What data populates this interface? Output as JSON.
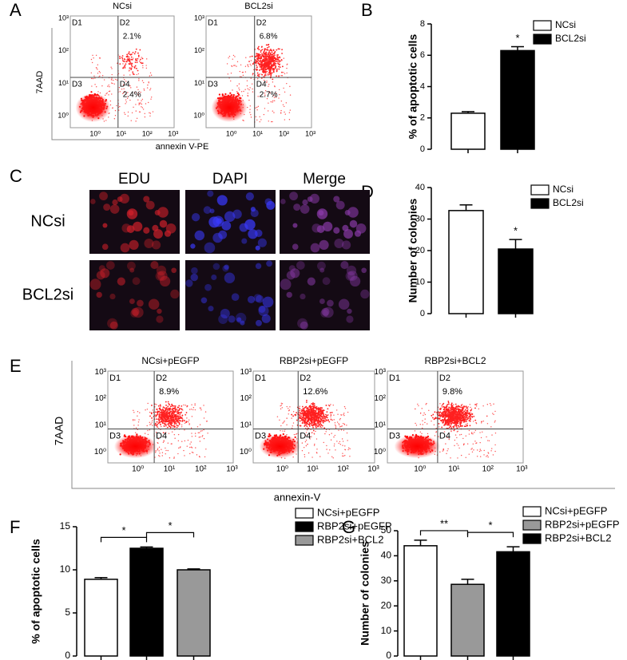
{
  "panel_labels": [
    "A",
    "B",
    "C",
    "D",
    "E",
    "F",
    "G"
  ],
  "flow_A": {
    "ylabel": "7AAD",
    "xlabel": "annexin V-PE",
    "ticks": [
      "10⁰",
      "10¹",
      "10²",
      "10³"
    ],
    "quadrants": [
      "D1",
      "D2",
      "D3",
      "D4"
    ],
    "plots": [
      {
        "title": "NCsi",
        "d2": "2.1%",
        "d4": "2.4%"
      },
      {
        "title": "BCL2si",
        "d2": "6.8%",
        "d4": "2.7%"
      }
    ]
  },
  "images_C": {
    "columns": [
      "EDU",
      "DAPI",
      "Merge"
    ],
    "rows": [
      "NCsi",
      "BCL2si"
    ]
  },
  "flow_E": {
    "ylabel": "7AAD",
    "xlabel": "annexin-V",
    "ticks": [
      "10⁰",
      "10¹",
      "10²",
      "10³"
    ],
    "quadrants": [
      "D1",
      "D2",
      "D3",
      "D4"
    ],
    "plots": [
      {
        "title": "NCsi+pEGFP",
        "d2": "8.9%"
      },
      {
        "title": "RBP2si+pEGFP",
        "d2": "12.6%"
      },
      {
        "title": "RBP2si+BCL2",
        "d2": "9.8%"
      }
    ]
  },
  "chart_data": [
    {
      "type": "bar",
      "ylabel": "% of apoptotic cells",
      "ylim": [
        0,
        8
      ],
      "yticks": [
        0,
        2,
        4,
        6,
        8
      ],
      "series": [
        {
          "name": "NCsi",
          "color": "#ffffff",
          "values": [
            2.3
          ],
          "errors": [
            0.1
          ]
        },
        {
          "name": "BCL2si",
          "color": "#000000",
          "values": [
            6.3
          ],
          "errors": [
            0.25
          ]
        }
      ],
      "brackets": [
        {
          "over": 1,
          "label": "*"
        }
      ]
    },
    {
      "type": "bar",
      "ylabel": "Number of colonies",
      "ylim": [
        0,
        40
      ],
      "yticks": [
        0,
        10,
        20,
        30,
        40
      ],
      "series": [
        {
          "name": "NCsi",
          "color": "#ffffff",
          "values": [
            32.7
          ],
          "errors": [
            1.8
          ]
        },
        {
          "name": "BCL2si",
          "color": "#000000",
          "values": [
            20.5
          ],
          "errors": [
            3.0
          ]
        }
      ],
      "brackets": [
        {
          "over": 1,
          "label": "*"
        }
      ]
    },
    {
      "type": "bar",
      "ylabel": "% of apoptotic cells",
      "ylim": [
        0,
        15
      ],
      "yticks": [
        0,
        5,
        10,
        15
      ],
      "series": [
        {
          "name": "NCsi+pEGFP",
          "color": "#ffffff",
          "values": [
            8.9
          ],
          "errors": [
            0.2
          ]
        },
        {
          "name": "RBP2si+pEGFP",
          "color": "#000000",
          "values": [
            12.5
          ],
          "errors": [
            0.15
          ]
        },
        {
          "name": "RBP2si+BCL2",
          "color": "#999999",
          "values": [
            10.0
          ],
          "errors": [
            0.1
          ]
        }
      ],
      "brackets": [
        {
          "from": 0,
          "to": 1,
          "label": "*"
        },
        {
          "from": 1,
          "to": 2,
          "label": "*"
        }
      ]
    },
    {
      "type": "bar",
      "ylabel": "Number of colonies",
      "ylim": [
        0,
        50
      ],
      "yticks": [
        0,
        10,
        20,
        30,
        40,
        50
      ],
      "series": [
        {
          "name": "NCsi+pEGFP",
          "color": "#ffffff",
          "values": [
            44.0
          ],
          "errors": [
            2.2
          ]
        },
        {
          "name": "RBP2si+pEGFP",
          "color": "#999999",
          "values": [
            28.6
          ],
          "errors": [
            2.0
          ]
        },
        {
          "name": "RBP2si+BCL2",
          "color": "#000000",
          "values": [
            41.6
          ],
          "errors": [
            2.0
          ]
        }
      ],
      "brackets": [
        {
          "from": 0,
          "to": 1,
          "label": "**"
        },
        {
          "from": 1,
          "to": 2,
          "label": "*"
        }
      ]
    }
  ]
}
